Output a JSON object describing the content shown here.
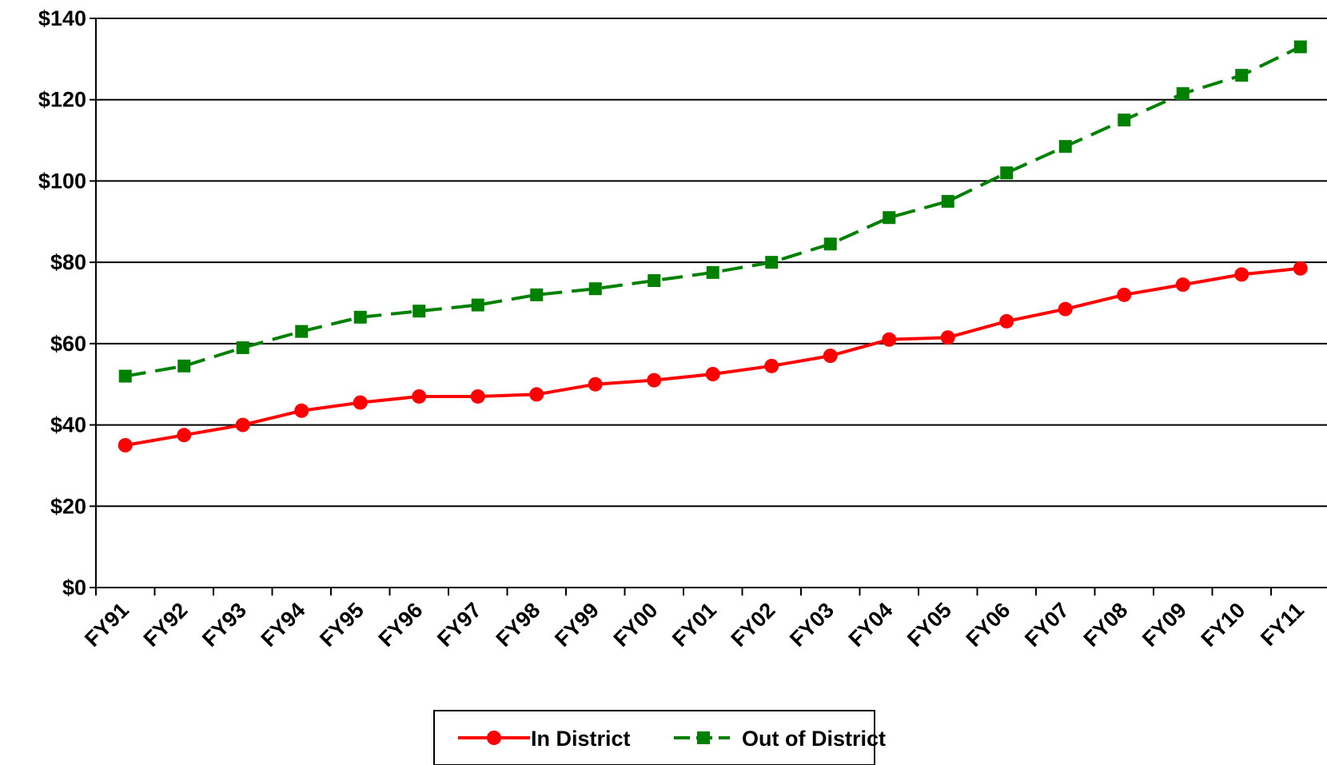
{
  "chart_data": {
    "type": "line",
    "title": "",
    "xlabel": "",
    "ylabel": "",
    "categories": [
      "FY91",
      "FY92",
      "FY93",
      "FY94",
      "FY95",
      "FY96",
      "FY97",
      "FY98",
      "FY99",
      "FY00",
      "FY01",
      "FY02",
      "FY03",
      "FY04",
      "FY05",
      "FY06",
      "FY07",
      "FY08",
      "FY09",
      "FY10",
      "FY11"
    ],
    "ylim": [
      0,
      140
    ],
    "y_ticks": [
      0,
      20,
      40,
      60,
      80,
      100,
      120,
      140
    ],
    "y_tick_labels": [
      "$0",
      "$20",
      "$40",
      "$60",
      "$80",
      "$100",
      "$120",
      "$140"
    ],
    "grid": true,
    "legend_position": "bottom-center",
    "series": [
      {
        "name": "In District",
        "color": "#ff0000",
        "line_style": "solid",
        "marker": "circle",
        "values": [
          35,
          37.5,
          40,
          43.5,
          45.5,
          47,
          47,
          47.5,
          50,
          51,
          52.5,
          54.5,
          57,
          61,
          61.5,
          65.5,
          68.5,
          72,
          74.5,
          77,
          78.5
        ]
      },
      {
        "name": "Out of District",
        "color": "#008000",
        "line_style": "dashed",
        "marker": "square",
        "values": [
          52,
          54.5,
          59,
          63,
          66.5,
          68,
          69.5,
          72,
          73.5,
          75.5,
          77.5,
          80,
          84.5,
          91,
          95,
          102,
          108.5,
          115,
          121.5,
          126,
          133
        ]
      }
    ]
  }
}
